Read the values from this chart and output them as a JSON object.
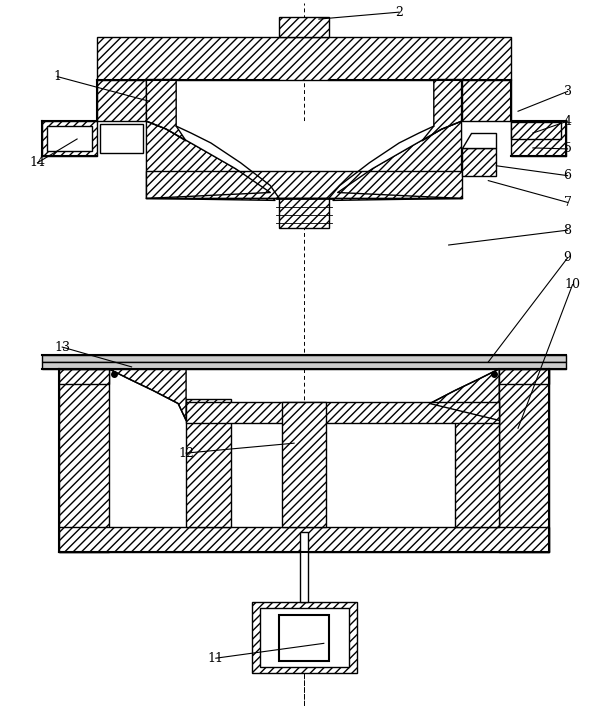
{
  "figsize": [
    6.08,
    7.09
  ],
  "dpi": 100,
  "background": "#ffffff",
  "lw": 1.0,
  "lw_thick": 1.5,
  "hatch": "////",
  "annotation_lw": 0.8,
  "label_fontsize": 9
}
